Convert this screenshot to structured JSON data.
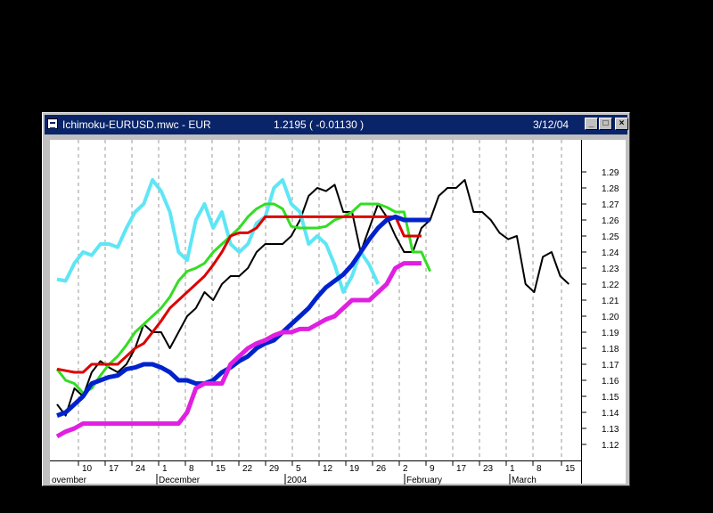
{
  "window": {
    "title": "Ichimoku-EURUSD.mwc - EUR",
    "price": "1.2195 ( -0.01130 )",
    "date": "3/12/04",
    "min_glyph": "_",
    "max_glyph": "□",
    "close_glyph": "×"
  },
  "chart_data": {
    "type": "line",
    "title": "",
    "ylim": [
      1.11,
      1.3
    ],
    "y_ticks": [
      "1.12",
      "1.13",
      "1.14",
      "1.15",
      "1.16",
      "1.17",
      "1.18",
      "1.19",
      "1.20",
      "1.21",
      "1.22",
      "1.23",
      "1.24",
      "1.25",
      "1.26",
      "1.27",
      "1.28",
      "1.29"
    ],
    "x_tick_labels": [
      "10",
      "17",
      "24",
      "1",
      "8",
      "15",
      "22",
      "29",
      "5",
      "12",
      "19",
      "26",
      "2",
      "9",
      "17",
      "23",
      "1",
      "8",
      "15"
    ],
    "month_labels": [
      "ovember",
      "December",
      "2004",
      "February",
      "March"
    ],
    "grid": "vertical dashed",
    "series": [
      {
        "color": "#000000",
        "width": 2,
        "values": [
          [
            0,
            1.145
          ],
          [
            3,
            1.138
          ],
          [
            6,
            1.155
          ],
          [
            9,
            1.15
          ],
          [
            12,
            1.165
          ],
          [
            15,
            1.172
          ],
          [
            18,
            1.168
          ],
          [
            21,
            1.165
          ],
          [
            24,
            1.17
          ],
          [
            27,
            1.18
          ],
          [
            30,
            1.195
          ],
          [
            33,
            1.19
          ],
          [
            36,
            1.19
          ],
          [
            39,
            1.18
          ],
          [
            42,
            1.19
          ],
          [
            45,
            1.2
          ],
          [
            48,
            1.205
          ],
          [
            51,
            1.215
          ],
          [
            54,
            1.21
          ],
          [
            57,
            1.22
          ],
          [
            60,
            1.225
          ],
          [
            63,
            1.225
          ],
          [
            66,
            1.23
          ],
          [
            69,
            1.24
          ],
          [
            72,
            1.245
          ],
          [
            75,
            1.245
          ],
          [
            78,
            1.245
          ],
          [
            81,
            1.25
          ],
          [
            84,
            1.26
          ],
          [
            87,
            1.275
          ],
          [
            90,
            1.28
          ],
          [
            93,
            1.278
          ],
          [
            96,
            1.282
          ],
          [
            99,
            1.265
          ],
          [
            102,
            1.265
          ],
          [
            105,
            1.24
          ],
          [
            108,
            1.255
          ],
          [
            111,
            1.27
          ],
          [
            114,
            1.262
          ],
          [
            117,
            1.25
          ],
          [
            120,
            1.24
          ],
          [
            123,
            1.24
          ],
          [
            126,
            1.255
          ],
          [
            129,
            1.26
          ],
          [
            132,
            1.275
          ],
          [
            135,
            1.28
          ],
          [
            138,
            1.28
          ],
          [
            141,
            1.285
          ],
          [
            144,
            1.265
          ],
          [
            147,
            1.265
          ],
          [
            150,
            1.26
          ],
          [
            153,
            1.252
          ],
          [
            156,
            1.248
          ],
          [
            159,
            1.25
          ],
          [
            162,
            1.22
          ],
          [
            165,
            1.215
          ],
          [
            168,
            1.237
          ],
          [
            171,
            1.24
          ],
          [
            174,
            1.225
          ],
          [
            177,
            1.22
          ]
        ]
      },
      {
        "color": "#5ee6f5",
        "width": 4,
        "values": [
          [
            0,
            1.223
          ],
          [
            3,
            1.222
          ],
          [
            6,
            1.233
          ],
          [
            9,
            1.24
          ],
          [
            12,
            1.238
          ],
          [
            15,
            1.245
          ],
          [
            18,
            1.245
          ],
          [
            21,
            1.243
          ],
          [
            24,
            1.255
          ],
          [
            27,
            1.265
          ],
          [
            30,
            1.27
          ],
          [
            33,
            1.285
          ],
          [
            36,
            1.278
          ],
          [
            39,
            1.265
          ],
          [
            42,
            1.24
          ],
          [
            45,
            1.235
          ],
          [
            48,
            1.26
          ],
          [
            51,
            1.27
          ],
          [
            54,
            1.255
          ],
          [
            57,
            1.265
          ],
          [
            60,
            1.245
          ],
          [
            63,
            1.24
          ],
          [
            66,
            1.245
          ],
          [
            69,
            1.258
          ],
          [
            72,
            1.262
          ],
          [
            75,
            1.28
          ],
          [
            78,
            1.285
          ],
          [
            81,
            1.27
          ],
          [
            84,
            1.265
          ],
          [
            87,
            1.245
          ],
          [
            90,
            1.25
          ],
          [
            93,
            1.245
          ],
          [
            96,
            1.232
          ],
          [
            99,
            1.215
          ],
          [
            102,
            1.225
          ],
          [
            105,
            1.24
          ],
          [
            108,
            1.232
          ],
          [
            111,
            1.22
          ]
        ]
      },
      {
        "color": "#33dd22",
        "width": 3,
        "values": [
          [
            0,
            1.167
          ],
          [
            3,
            1.16
          ],
          [
            6,
            1.158
          ],
          [
            9,
            1.152
          ],
          [
            12,
            1.155
          ],
          [
            15,
            1.163
          ],
          [
            18,
            1.17
          ],
          [
            21,
            1.175
          ],
          [
            24,
            1.182
          ],
          [
            27,
            1.19
          ],
          [
            30,
            1.195
          ],
          [
            33,
            1.2
          ],
          [
            36,
            1.205
          ],
          [
            39,
            1.212
          ],
          [
            42,
            1.222
          ],
          [
            45,
            1.228
          ],
          [
            48,
            1.23
          ],
          [
            51,
            1.233
          ],
          [
            54,
            1.24
          ],
          [
            57,
            1.245
          ],
          [
            60,
            1.25
          ],
          [
            63,
            1.255
          ],
          [
            66,
            1.262
          ],
          [
            69,
            1.267
          ],
          [
            72,
            1.27
          ],
          [
            75,
            1.27
          ],
          [
            78,
            1.267
          ],
          [
            81,
            1.256
          ],
          [
            84,
            1.255
          ],
          [
            87,
            1.255
          ],
          [
            90,
            1.255
          ],
          [
            93,
            1.256
          ],
          [
            96,
            1.26
          ],
          [
            99,
            1.262
          ],
          [
            102,
            1.265
          ],
          [
            105,
            1.27
          ],
          [
            108,
            1.27
          ],
          [
            111,
            1.27
          ],
          [
            114,
            1.268
          ],
          [
            117,
            1.265
          ],
          [
            120,
            1.265
          ],
          [
            123,
            1.24
          ],
          [
            126,
            1.24
          ],
          [
            129,
            1.228
          ]
        ]
      },
      {
        "color": "#dd0000",
        "width": 3,
        "values": [
          [
            0,
            1.167
          ],
          [
            3,
            1.166
          ],
          [
            6,
            1.165
          ],
          [
            9,
            1.165
          ],
          [
            12,
            1.17
          ],
          [
            15,
            1.17
          ],
          [
            18,
            1.17
          ],
          [
            21,
            1.17
          ],
          [
            24,
            1.175
          ],
          [
            27,
            1.18
          ],
          [
            30,
            1.183
          ],
          [
            33,
            1.19
          ],
          [
            36,
            1.197
          ],
          [
            39,
            1.205
          ],
          [
            42,
            1.21
          ],
          [
            45,
            1.215
          ],
          [
            48,
            1.22
          ],
          [
            51,
            1.225
          ],
          [
            54,
            1.232
          ],
          [
            57,
            1.24
          ],
          [
            60,
            1.25
          ],
          [
            63,
            1.252
          ],
          [
            66,
            1.252
          ],
          [
            69,
            1.255
          ],
          [
            72,
            1.262
          ],
          [
            75,
            1.262
          ],
          [
            78,
            1.262
          ],
          [
            81,
            1.262
          ],
          [
            84,
            1.262
          ],
          [
            87,
            1.262
          ],
          [
            90,
            1.262
          ],
          [
            93,
            1.262
          ],
          [
            96,
            1.262
          ],
          [
            99,
            1.262
          ],
          [
            102,
            1.262
          ],
          [
            105,
            1.262
          ],
          [
            108,
            1.262
          ],
          [
            111,
            1.262
          ],
          [
            114,
            1.262
          ],
          [
            117,
            1.262
          ],
          [
            120,
            1.25
          ],
          [
            123,
            1.25
          ],
          [
            126,
            1.25
          ]
        ]
      },
      {
        "color": "#0022cc",
        "width": 5,
        "values": [
          [
            0,
            1.138
          ],
          [
            3,
            1.14
          ],
          [
            6,
            1.145
          ],
          [
            9,
            1.15
          ],
          [
            12,
            1.158
          ],
          [
            15,
            1.16
          ],
          [
            18,
            1.162
          ],
          [
            21,
            1.163
          ],
          [
            24,
            1.167
          ],
          [
            27,
            1.168
          ],
          [
            30,
            1.17
          ],
          [
            33,
            1.17
          ],
          [
            36,
            1.168
          ],
          [
            39,
            1.165
          ],
          [
            42,
            1.16
          ],
          [
            45,
            1.16
          ],
          [
            48,
            1.158
          ],
          [
            51,
            1.158
          ],
          [
            54,
            1.16
          ],
          [
            57,
            1.165
          ],
          [
            60,
            1.168
          ],
          [
            63,
            1.172
          ],
          [
            66,
            1.175
          ],
          [
            69,
            1.18
          ],
          [
            72,
            1.183
          ],
          [
            75,
            1.185
          ],
          [
            78,
            1.19
          ],
          [
            81,
            1.195
          ],
          [
            84,
            1.2
          ],
          [
            87,
            1.205
          ],
          [
            90,
            1.212
          ],
          [
            93,
            1.218
          ],
          [
            96,
            1.222
          ],
          [
            99,
            1.226
          ],
          [
            102,
            1.232
          ],
          [
            105,
            1.24
          ],
          [
            108,
            1.248
          ],
          [
            111,
            1.255
          ],
          [
            114,
            1.26
          ],
          [
            117,
            1.262
          ],
          [
            120,
            1.26
          ],
          [
            123,
            1.26
          ],
          [
            126,
            1.26
          ],
          [
            129,
            1.26
          ]
        ]
      },
      {
        "color": "#e020e0",
        "width": 5,
        "values": [
          [
            0,
            1.125
          ],
          [
            3,
            1.128
          ],
          [
            6,
            1.13
          ],
          [
            9,
            1.133
          ],
          [
            12,
            1.133
          ],
          [
            15,
            1.133
          ],
          [
            18,
            1.133
          ],
          [
            21,
            1.133
          ],
          [
            24,
            1.133
          ],
          [
            27,
            1.133
          ],
          [
            30,
            1.133
          ],
          [
            33,
            1.133
          ],
          [
            36,
            1.133
          ],
          [
            39,
            1.133
          ],
          [
            42,
            1.133
          ],
          [
            45,
            1.14
          ],
          [
            48,
            1.155
          ],
          [
            51,
            1.158
          ],
          [
            54,
            1.158
          ],
          [
            57,
            1.158
          ],
          [
            60,
            1.17
          ],
          [
            63,
            1.175
          ],
          [
            66,
            1.18
          ],
          [
            69,
            1.183
          ],
          [
            72,
            1.185
          ],
          [
            75,
            1.188
          ],
          [
            78,
            1.19
          ],
          [
            81,
            1.19
          ],
          [
            84,
            1.192
          ],
          [
            87,
            1.192
          ],
          [
            90,
            1.195
          ],
          [
            93,
            1.198
          ],
          [
            96,
            1.2
          ],
          [
            99,
            1.205
          ],
          [
            102,
            1.21
          ],
          [
            105,
            1.21
          ],
          [
            108,
            1.21
          ],
          [
            111,
            1.215
          ],
          [
            114,
            1.22
          ],
          [
            117,
            1.23
          ],
          [
            120,
            1.233
          ],
          [
            123,
            1.233
          ],
          [
            126,
            1.233
          ]
        ]
      }
    ]
  }
}
